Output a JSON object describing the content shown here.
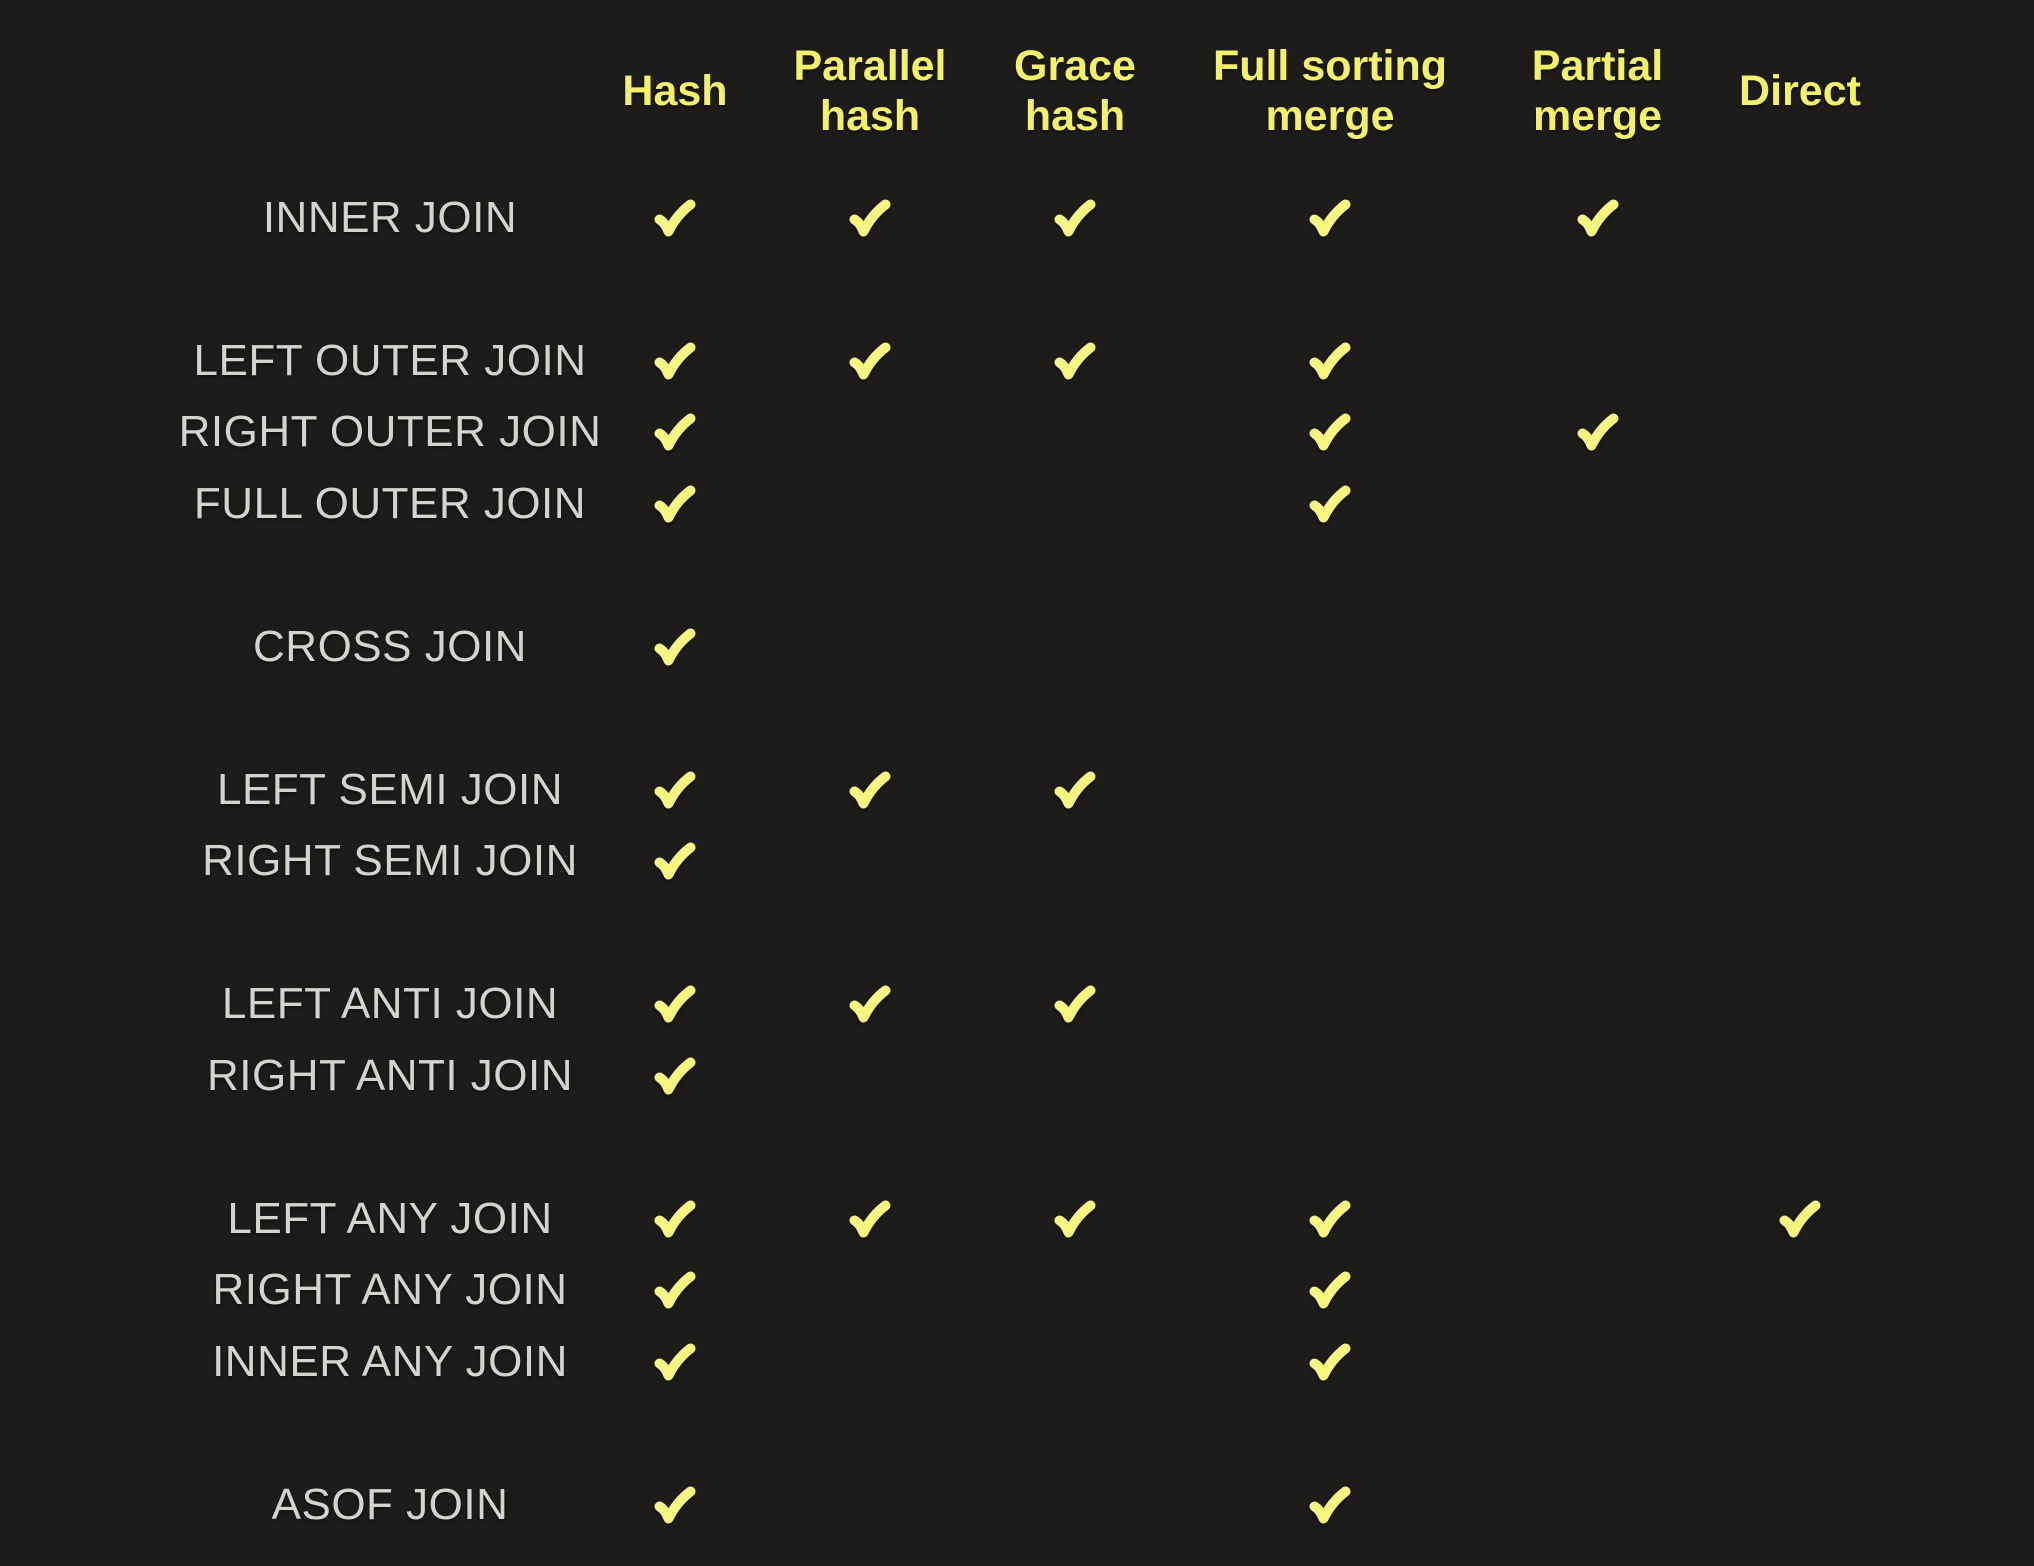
{
  "style": {
    "background": "#1d1c1a",
    "header_color": "#f3f06a",
    "label_color": "#d5d3d0",
    "check_color": "#f6f582"
  },
  "icons": {
    "check": {
      "name": "check-icon",
      "glyph": "✔"
    }
  },
  "chart_data": {
    "type": "table",
    "columns": [
      "Hash",
      "Parallel hash",
      "Grace hash",
      "Full sorting merge",
      "Partial merge",
      "Direct"
    ],
    "column_header_lines": [
      [
        "Hash"
      ],
      [
        "Parallel",
        "hash"
      ],
      [
        "Grace",
        "hash"
      ],
      [
        "Full sorting",
        "merge"
      ],
      [
        "Partial",
        "merge"
      ],
      [
        "Direct"
      ]
    ],
    "rows": [
      {
        "label": "INNER JOIN",
        "checks": [
          true,
          true,
          true,
          true,
          true,
          false
        ]
      },
      {
        "spacer": true
      },
      {
        "label": "LEFT OUTER JOIN",
        "checks": [
          true,
          true,
          true,
          true,
          false,
          false
        ]
      },
      {
        "label": "RIGHT OUTER JOIN",
        "checks": [
          true,
          false,
          false,
          true,
          true,
          false
        ]
      },
      {
        "label": "FULL OUTER JOIN",
        "checks": [
          true,
          false,
          false,
          true,
          false,
          false
        ]
      },
      {
        "spacer": true
      },
      {
        "label": "CROSS JOIN",
        "checks": [
          true,
          false,
          false,
          false,
          false,
          false
        ]
      },
      {
        "spacer": true
      },
      {
        "label": "LEFT SEMI JOIN",
        "checks": [
          true,
          true,
          true,
          false,
          false,
          false
        ]
      },
      {
        "label": "RIGHT SEMI JOIN",
        "checks": [
          true,
          false,
          false,
          false,
          false,
          false
        ]
      },
      {
        "spacer": true
      },
      {
        "label": "LEFT ANTI JOIN",
        "checks": [
          true,
          true,
          true,
          false,
          false,
          false
        ]
      },
      {
        "label": "RIGHT ANTI JOIN",
        "checks": [
          true,
          false,
          false,
          false,
          false,
          false
        ]
      },
      {
        "spacer": true
      },
      {
        "label": "LEFT ANY JOIN",
        "checks": [
          true,
          true,
          true,
          true,
          false,
          true
        ]
      },
      {
        "label": "RIGHT ANY JOIN",
        "checks": [
          true,
          false,
          false,
          true,
          false,
          false
        ]
      },
      {
        "label": "INNER ANY JOIN",
        "checks": [
          true,
          false,
          false,
          true,
          false,
          false
        ]
      },
      {
        "spacer": true
      },
      {
        "label": "ASOF JOIN",
        "checks": [
          true,
          false,
          false,
          true,
          false,
          false
        ]
      }
    ]
  }
}
